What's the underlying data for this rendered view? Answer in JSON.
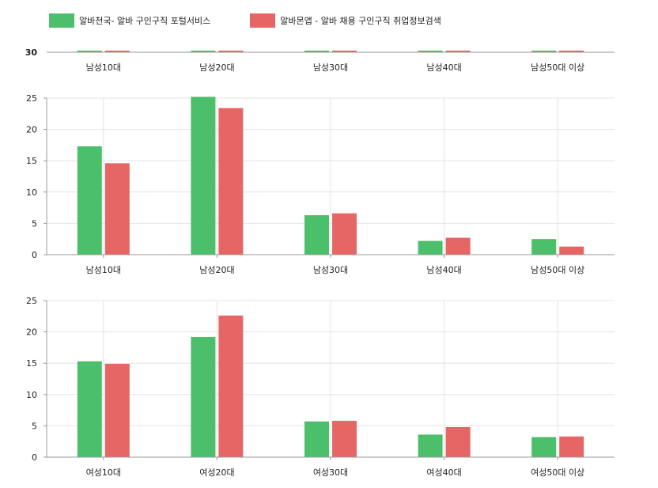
{
  "legend": {
    "series1": "알바천국- 알바 구인구직 포털서비스",
    "series2": "알바몬앱 - 알바 채용 구인구직 취업정보검색"
  },
  "colors": {
    "series1": "#4cbf6a",
    "series2": "#e66666",
    "grid": "#e4e4e4",
    "axis": "#999999",
    "text": "#222222"
  },
  "chart_data": [
    {
      "type": "bar",
      "title": "",
      "partial": true,
      "categories": [
        "남성10대",
        "남성20대",
        "남성30대",
        "남성40대",
        "남성50대 이상"
      ],
      "yticks": [
        "30"
      ],
      "series": [
        {
          "name": "알바천국- 알바 구인구직 포털서비스",
          "values": [
            null,
            null,
            null,
            null,
            null
          ]
        },
        {
          "name": "알바몬앱 - 알바 채용 구인구직 취업정보검색",
          "values": [
            null,
            null,
            null,
            null,
            null
          ]
        }
      ]
    },
    {
      "type": "bar",
      "title": "",
      "categories": [
        "남성10대",
        "남성20대",
        "남성30대",
        "남성40대",
        "남성50대 이상"
      ],
      "ylim": [
        0,
        25
      ],
      "yticks": [
        0,
        5,
        10,
        15,
        20,
        25
      ],
      "series": [
        {
          "name": "알바천국- 알바 구인구직 포털서비스",
          "values": [
            17.3,
            25.2,
            6.3,
            2.2,
            2.5
          ]
        },
        {
          "name": "알바몬앱 - 알바 채용 구인구직 취업정보검색",
          "values": [
            14.6,
            23.4,
            6.6,
            2.7,
            1.3
          ]
        }
      ]
    },
    {
      "type": "bar",
      "title": "",
      "categories": [
        "여성10대",
        "여성20대",
        "여성30대",
        "여성40대",
        "여성50대 이상"
      ],
      "ylim": [
        0,
        25
      ],
      "yticks": [
        0,
        5,
        10,
        15,
        20,
        25
      ],
      "series": [
        {
          "name": "알바천국- 알바 구인구직 포털서비스",
          "values": [
            15.3,
            19.2,
            5.7,
            3.6,
            3.2
          ]
        },
        {
          "name": "알바몬앱 - 알바 채용 구인구직 취업정보검색",
          "values": [
            14.9,
            22.6,
            5.8,
            4.8,
            3.3
          ]
        }
      ]
    }
  ]
}
